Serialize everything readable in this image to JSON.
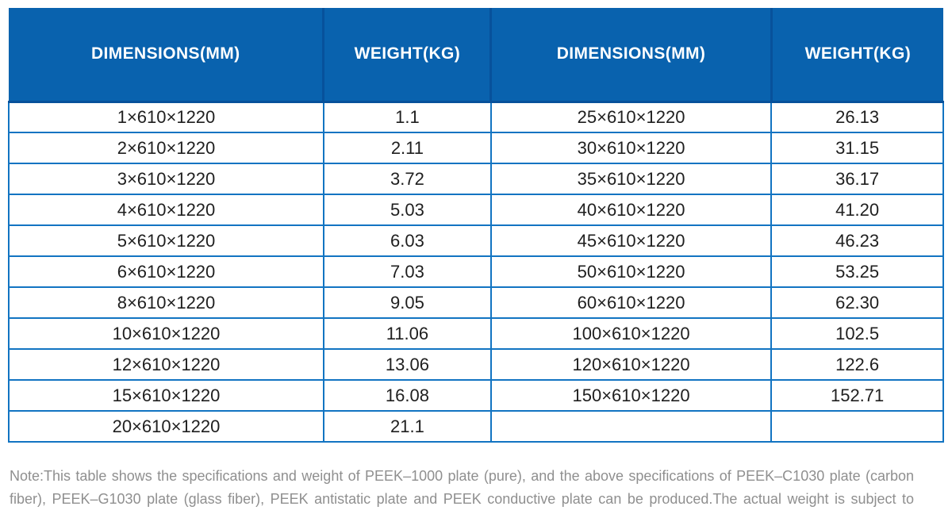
{
  "table": {
    "headers": [
      "DIMENSIONS(MM)",
      "WEIGHT(KG)",
      "DIMENSIONS(MM)",
      "WEIGHT(KG)"
    ],
    "rows": [
      [
        "1×610×1220",
        "1.1",
        "25×610×1220",
        "26.13"
      ],
      [
        "2×610×1220",
        "2.11",
        "30×610×1220",
        "31.15"
      ],
      [
        "3×610×1220",
        "3.72",
        "35×610×1220",
        "36.17"
      ],
      [
        "4×610×1220",
        "5.03",
        "40×610×1220",
        "41.20"
      ],
      [
        "5×610×1220",
        "6.03",
        "45×610×1220",
        "46.23"
      ],
      [
        "6×610×1220",
        "7.03",
        "50×610×1220",
        "53.25"
      ],
      [
        "8×610×1220",
        "9.05",
        "60×610×1220",
        "62.30"
      ],
      [
        "10×610×1220",
        "11.06",
        "100×610×1220",
        "102.5"
      ],
      [
        "12×610×1220",
        "13.06",
        "120×610×1220",
        "122.6"
      ],
      [
        "15×610×1220",
        "16.08",
        "150×610×1220",
        "152.71"
      ],
      [
        "20×610×1220",
        "21.1",
        "",
        ""
      ]
    ]
  },
  "note": "Note:This table shows the specifications and weight of PEEK–1000 plate (pure), and the above specifications of PEEK–C1030 plate (carbon fiber), PEEK–G1030 plate (glass fiber), PEEK antistatic plate and PEEK conductive plate can be produced.The actual weight is subject to weighting.",
  "colors": {
    "header_bg": "#0962ae",
    "header_divider": "#07519b",
    "body_border": "#1274c2",
    "body_text": "#1f1f1f",
    "note_text": "#8f8f8f",
    "header_text": "#ffffff"
  }
}
